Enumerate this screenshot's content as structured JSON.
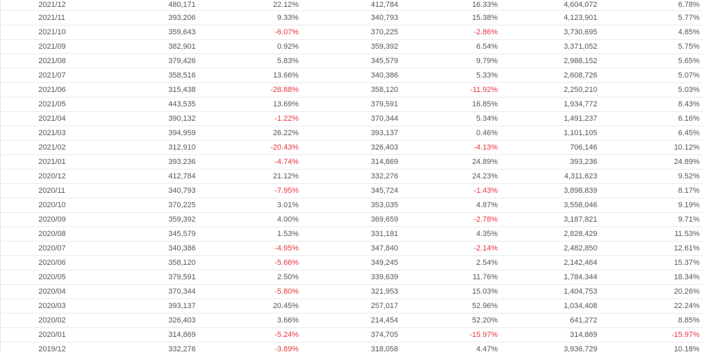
{
  "table": {
    "rows": [
      {
        "month": "2021/12",
        "v1": "480,171",
        "p1": "22.12%",
        "v2": "412,784",
        "p2": "16.33%",
        "v3": "4,604,072",
        "p3": "6.78%"
      },
      {
        "month": "2021/11",
        "v1": "393,206",
        "p1": "9.33%",
        "v2": "340,793",
        "p2": "15.38%",
        "v3": "4,123,901",
        "p3": "5.77%"
      },
      {
        "month": "2021/10",
        "v1": "359,643",
        "p1": "-6.07%",
        "v2": "370,225",
        "p2": "-2.86%",
        "v3": "3,730,695",
        "p3": "4.85%"
      },
      {
        "month": "2021/09",
        "v1": "382,901",
        "p1": "0.92%",
        "v2": "359,392",
        "p2": "6.54%",
        "v3": "3,371,052",
        "p3": "5.75%"
      },
      {
        "month": "2021/08",
        "v1": "379,426",
        "p1": "5.83%",
        "v2": "345,579",
        "p2": "9.79%",
        "v3": "2,988,152",
        "p3": "5.65%"
      },
      {
        "month": "2021/07",
        "v1": "358,516",
        "p1": "13.66%",
        "v2": "340,386",
        "p2": "5.33%",
        "v3": "2,608,726",
        "p3": "5.07%"
      },
      {
        "month": "2021/06",
        "v1": "315,438",
        "p1": "-28.88%",
        "v2": "358,120",
        "p2": "-11.92%",
        "v3": "2,250,210",
        "p3": "5.03%"
      },
      {
        "month": "2021/05",
        "v1": "443,535",
        "p1": "13.69%",
        "v2": "379,591",
        "p2": "16.85%",
        "v3": "1,934,772",
        "p3": "8.43%"
      },
      {
        "month": "2021/04",
        "v1": "390,132",
        "p1": "-1.22%",
        "v2": "370,344",
        "p2": "5.34%",
        "v3": "1,491,237",
        "p3": "6.16%"
      },
      {
        "month": "2021/03",
        "v1": "394,959",
        "p1": "26.22%",
        "v2": "393,137",
        "p2": "0.46%",
        "v3": "1,101,105",
        "p3": "6.45%"
      },
      {
        "month": "2021/02",
        "v1": "312,910",
        "p1": "-20.43%",
        "v2": "326,403",
        "p2": "-4.13%",
        "v3": "706,146",
        "p3": "10.12%"
      },
      {
        "month": "2021/01",
        "v1": "393,236",
        "p1": "-4.74%",
        "v2": "314,869",
        "p2": "24.89%",
        "v3": "393,236",
        "p3": "24.89%"
      },
      {
        "month": "2020/12",
        "v1": "412,784",
        "p1": "21.12%",
        "v2": "332,276",
        "p2": "24.23%",
        "v3": "4,311,623",
        "p3": "9.52%"
      },
      {
        "month": "2020/11",
        "v1": "340,793",
        "p1": "-7.95%",
        "v2": "345,724",
        "p2": "-1.43%",
        "v3": "3,898,839",
        "p3": "8.17%"
      },
      {
        "month": "2020/10",
        "v1": "370,225",
        "p1": "3.01%",
        "v2": "353,035",
        "p2": "4.87%",
        "v3": "3,558,046",
        "p3": "9.19%"
      },
      {
        "month": "2020/09",
        "v1": "359,392",
        "p1": "4.00%",
        "v2": "369,659",
        "p2": "-2.78%",
        "v3": "3,187,821",
        "p3": "9.71%"
      },
      {
        "month": "2020/08",
        "v1": "345,579",
        "p1": "1.53%",
        "v2": "331,181",
        "p2": "4.35%",
        "v3": "2,828,429",
        "p3": "11.53%"
      },
      {
        "month": "2020/07",
        "v1": "340,386",
        "p1": "-4.95%",
        "v2": "347,840",
        "p2": "-2.14%",
        "v3": "2,482,850",
        "p3": "12.61%"
      },
      {
        "month": "2020/06",
        "v1": "358,120",
        "p1": "-5.66%",
        "v2": "349,245",
        "p2": "2.54%",
        "v3": "2,142,464",
        "p3": "15.37%"
      },
      {
        "month": "2020/05",
        "v1": "379,591",
        "p1": "2.50%",
        "v2": "339,639",
        "p2": "11.76%",
        "v3": "1,784,344",
        "p3": "18.34%"
      },
      {
        "month": "2020/04",
        "v1": "370,344",
        "p1": "-5.80%",
        "v2": "321,953",
        "p2": "15.03%",
        "v3": "1,404,753",
        "p3": "20.26%"
      },
      {
        "month": "2020/03",
        "v1": "393,137",
        "p1": "20.45%",
        "v2": "257,017",
        "p2": "52.96%",
        "v3": "1,034,408",
        "p3": "22.24%"
      },
      {
        "month": "2020/02",
        "v1": "326,403",
        "p1": "3.66%",
        "v2": "214,454",
        "p2": "52.20%",
        "v3": "641,272",
        "p3": "8.85%"
      },
      {
        "month": "2020/01",
        "v1": "314,869",
        "p1": "-5.24%",
        "v2": "374,705",
        "p2": "-15.97%",
        "v3": "314,869",
        "p3": "-15.97%"
      },
      {
        "month": "2019/12",
        "v1": "332,276",
        "p1": "-3.89%",
        "v2": "318,058",
        "p2": "4.47%",
        "v3": "3,936,729",
        "p3": "10.18%"
      }
    ]
  },
  "colors": {
    "text": "#555555",
    "negative": "#e8343f",
    "row_border": "#eaeaea"
  }
}
